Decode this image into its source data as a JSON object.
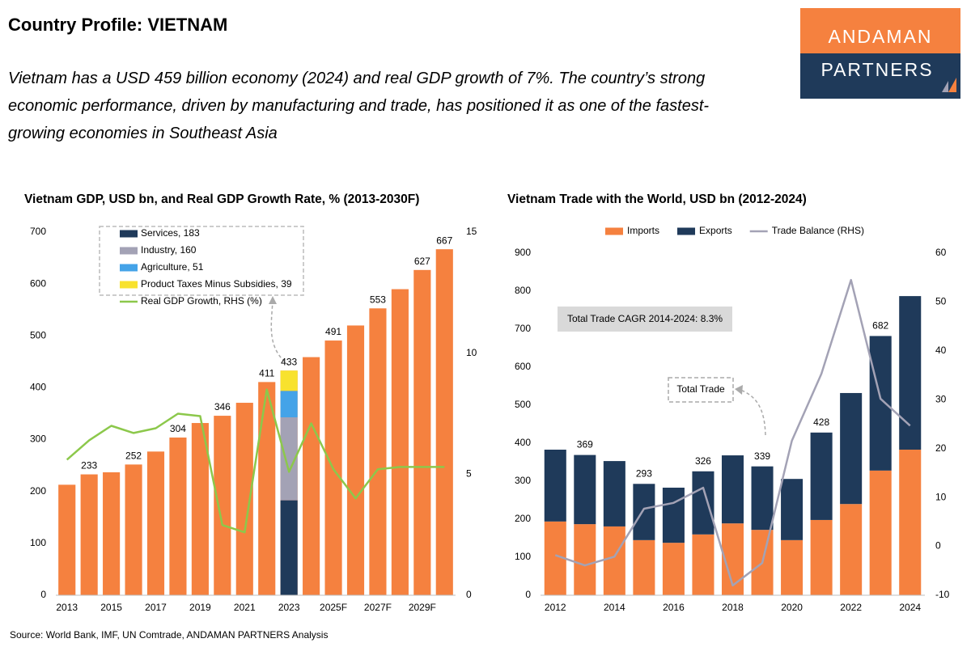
{
  "header": {
    "title": "Country Profile: VIETNAM",
    "subtitle": "Vietnam has a USD 459 billion economy (2024) and real GDP growth of 7%. The country’s strong economic performance, driven by manufacturing and trade, has positioned it as one of the fastest-growing economies in Southeast Asia",
    "logo": [
      "ANDAMAN",
      "PARTNERS"
    ]
  },
  "chart_data": [
    {
      "type": "bar",
      "title": "Vietnam GDP, USD bn, and Real GDP Growth Rate, % (2013-2030F)",
      "categories": [
        "2013",
        null,
        "2015",
        null,
        "2017",
        null,
        "2019",
        null,
        "2021",
        null,
        "2023",
        null,
        "2025F",
        null,
        "2027F",
        null,
        "2029F",
        null
      ],
      "series": [
        {
          "color": "#f5813f",
          "values": [
            213,
            233,
            237,
            252,
            277,
            304,
            332,
            346,
            371,
            411,
            433,
            459,
            491,
            520,
            553,
            590,
            627,
            667
          ],
          "value_labels": [
            null,
            "233",
            null,
            "252",
            null,
            "304",
            null,
            "346",
            null,
            "411",
            "433",
            null,
            "491",
            null,
            "553",
            null,
            "627",
            "667"
          ]
        },
        {
          "name": "Services, 183",
          "color": "#1f3a5a",
          "stack": true,
          "values": [
            null,
            null,
            null,
            null,
            null,
            null,
            null,
            null,
            null,
            null,
            183,
            null,
            null,
            null,
            null,
            null,
            null,
            null
          ]
        },
        {
          "name": "Industry, 160",
          "color": "#a3a2b5",
          "stack": true,
          "values": [
            null,
            null,
            null,
            null,
            null,
            null,
            null,
            null,
            null,
            null,
            160,
            null,
            null,
            null,
            null,
            null,
            null,
            null
          ]
        },
        {
          "name": "Agriculture, 51",
          "color": "#44a3e8",
          "stack": true,
          "values": [
            null,
            null,
            null,
            null,
            null,
            null,
            null,
            null,
            null,
            null,
            51,
            null,
            null,
            null,
            null,
            null,
            null,
            null
          ]
        },
        {
          "name": "Product Taxes Minus Subsidies, 39",
          "color": "#f8e22e",
          "stack": true,
          "values": [
            null,
            null,
            null,
            null,
            null,
            null,
            null,
            null,
            null,
            null,
            39,
            null,
            null,
            null,
            null,
            null,
            null,
            null
          ]
        },
        {
          "name": "Real GDP Growth, RHS (%)",
          "color": "#8cc84b",
          "type": "line",
          "axis": "y2",
          "values": [
            5.6,
            6.4,
            7.0,
            6.7,
            6.9,
            7.5,
            7.4,
            2.9,
            2.6,
            8.5,
            5.1,
            7.1,
            5.2,
            4.0,
            5.2,
            5.3,
            5.3,
            5.3
          ]
        }
      ],
      "ylim": [
        0,
        700
      ],
      "yticks": [
        0,
        100,
        200,
        300,
        400,
        500,
        600,
        700
      ],
      "y2lim": [
        0,
        15
      ],
      "y2ticks": [
        0,
        5,
        10,
        15
      ],
      "grid": false,
      "legend": "top-left"
    },
    {
      "type": "bar",
      "title": "Vietnam Trade with the World, USD bn (2012-2024)",
      "categories": [
        "2012",
        null,
        "2014",
        null,
        "2016",
        null,
        "2018",
        null,
        "2020",
        null,
        "2022",
        null,
        "2024"
      ],
      "series": [
        {
          "name": "Imports",
          "color": "#f5813f",
          "stack": true,
          "values": [
            194,
            187,
            181,
            145,
            138,
            160,
            189,
            172,
            145,
            198,
            240,
            328,
            383
          ]
        },
        {
          "name": "Exports",
          "color": "#1f3a5a",
          "stack": true,
          "values": [
            189,
            182,
            172,
            148,
            145,
            166,
            179,
            167,
            161,
            230,
            292,
            354,
            404
          ]
        },
        {
          "name": "Trade Balance (RHS)",
          "color": "#a3a2b5",
          "type": "line",
          "axis": "y2",
          "values": [
            -1.8,
            -3.9,
            -2.1,
            7.7,
            8.9,
            12.0,
            -8.0,
            -3.4,
            21.6,
            35.3,
            54.5,
            30.2,
            24.7
          ]
        }
      ],
      "totals": [
        null,
        369,
        null,
        293,
        null,
        326,
        null,
        339,
        null,
        428,
        null,
        682,
        null
      ],
      "annotations": [
        "Total Trade CAGR 2014-2024: 8.3%",
        "Total Trade"
      ],
      "ylim": [
        0,
        900
      ],
      "yticks": [
        0,
        100,
        200,
        300,
        400,
        500,
        600,
        700,
        800,
        900
      ],
      "y2lim": [
        -10,
        60
      ],
      "y2ticks": [
        -10,
        0,
        10,
        20,
        30,
        40,
        50,
        60
      ],
      "grid": false,
      "legend": "top"
    }
  ],
  "footer": {
    "source": "Source: World Bank, IMF, UN Comtrade, ANDAMAN PARTNERS Analysis"
  }
}
